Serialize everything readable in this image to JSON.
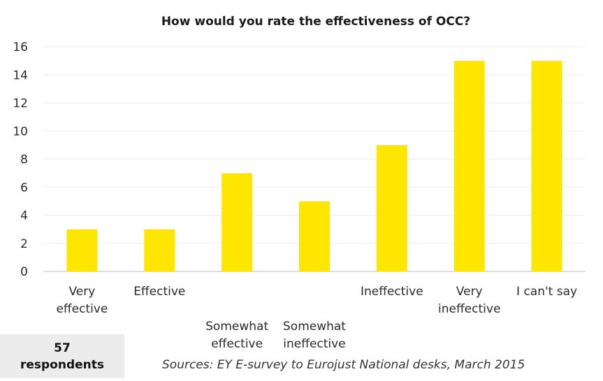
{
  "chart_data": {
    "type": "bar",
    "title": "How would you rate the effectiveness  of OCC?",
    "categories": [
      [
        "Very",
        "effective"
      ],
      [
        "Effective"
      ],
      [
        "",
        "",
        "Somewhat",
        "effective"
      ],
      [
        "",
        "",
        "Somewhat",
        "ineffective"
      ],
      [
        "Ineffective"
      ],
      [
        "Very",
        "ineffective"
      ],
      [
        "I can't say"
      ]
    ],
    "values": [
      3,
      3,
      7,
      5,
      9,
      15,
      15
    ],
    "ylim": [
      0,
      16
    ],
    "yticks": [
      0,
      2,
      4,
      6,
      8,
      10,
      12,
      14,
      16
    ],
    "bar_color": "#FFE600",
    "grid": true,
    "legend": "none"
  },
  "footer": {
    "respondents_count": "57",
    "respondents_label": "respondents",
    "source": "Sources: EY E-survey to Eurojust National desks, March 2015"
  }
}
